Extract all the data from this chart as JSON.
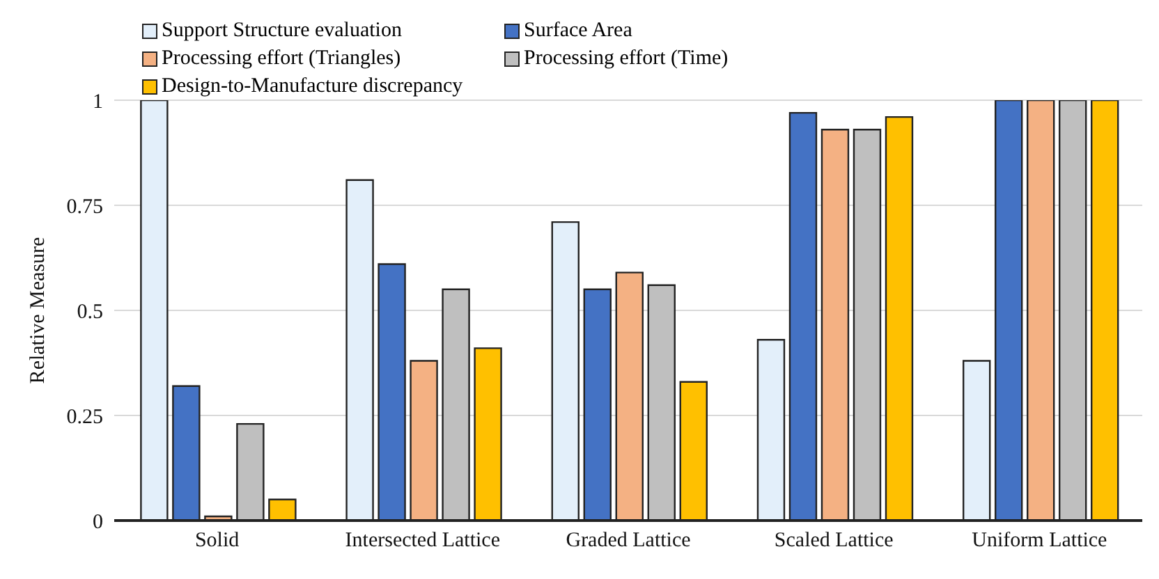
{
  "chart_data": {
    "type": "bar",
    "ylabel": "Relative Measure",
    "categories": [
      "Solid",
      "Intersected Lattice",
      "Graded Lattice",
      "Scaled Lattice",
      "Uniform Lattice"
    ],
    "series": [
      {
        "name": "Support Structure evaluation",
        "color": "#e3effa",
        "values": [
          1,
          0.81,
          0.71,
          0.43,
          0.38
        ]
      },
      {
        "name": "Surface Area",
        "color": "#4472c4",
        "values": [
          0.32,
          0.61,
          0.55,
          0.97,
          1
        ]
      },
      {
        "name": "Processing effort (Triangles)",
        "color": "#f4b183",
        "values": [
          0.01,
          0.38,
          0.59,
          0.93,
          1
        ]
      },
      {
        "name": "Processing effort (Time)",
        "color": "#bfbfbf",
        "values": [
          0.23,
          0.55,
          0.56,
          0.93,
          1
        ]
      },
      {
        "name": "Design-to-Manufacture discrepancy",
        "color": "#ffc000",
        "values": [
          0.05,
          0.41,
          0.33,
          0.96,
          1
        ]
      }
    ],
    "ylim": [
      0,
      1
    ],
    "yticks": [
      0,
      0.25,
      0.5,
      0.75,
      1
    ],
    "grid": "y",
    "legend": "top"
  }
}
